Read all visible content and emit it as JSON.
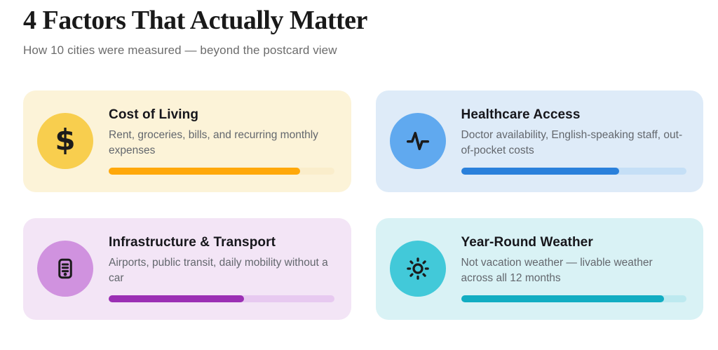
{
  "header": {
    "title": "4 Factors That Actually Matter",
    "subtitle": "How 10 cities were measured — beyond the postcard view"
  },
  "cards": [
    {
      "title": "Cost of Living",
      "description": "Rent, groceries, bills, and recurring monthly expenses",
      "icon": "dollar-icon",
      "glyph": "$",
      "progress_percent": 85,
      "colors": {
        "card_bg": "#FCF3D8",
        "circle_bg": "#F8CE4E",
        "bar_fill": "#FFA80A",
        "bar_track": "#FAEDCB"
      }
    },
    {
      "title": "Healthcare Access",
      "description": "Doctor availability, English-speaking staff, out-of-pocket costs",
      "icon": "pulse-icon",
      "progress_percent": 70,
      "colors": {
        "card_bg": "#DEEBF8",
        "circle_bg": "#60A9EF",
        "bar_fill": "#2A80DB",
        "bar_track": "#C5DFF6"
      }
    },
    {
      "title": "Infrastructure & Transport",
      "description": "Airports, public transit, daily mobility without a car",
      "icon": "transit-kiosk-icon",
      "progress_percent": 60,
      "colors": {
        "card_bg": "#F3E5F6",
        "circle_bg": "#D092DF",
        "bar_fill": "#9B2FB4",
        "bar_track": "#E7C9F0"
      }
    },
    {
      "title": "Year-Round Weather",
      "description": "Not vacation weather — livable weather across all 12 months",
      "icon": "sun-icon",
      "progress_percent": 90,
      "colors": {
        "card_bg": "#D9F2F5",
        "circle_bg": "#42C9D9",
        "bar_fill": "#12ADC2",
        "bar_track": "#BDE9EF"
      }
    }
  ]
}
